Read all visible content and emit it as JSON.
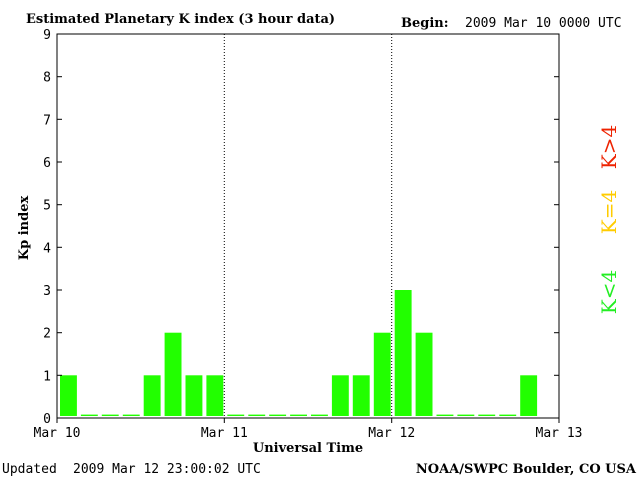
{
  "header": {
    "title": "Estimated Planetary K index (3 hour data)",
    "begin_label": "Begin:",
    "begin_value": "2009 Mar 10 0000 UTC"
  },
  "footer": {
    "updated_label": "Updated",
    "updated_value": "2009 Mar 12 23:00:02 UTC",
    "source": "NOAA/SWPC Boulder, CO USA"
  },
  "chart_data": {
    "type": "bar",
    "title": "Estimated Planetary K index (3 hour data)",
    "xlabel": "Universal Time",
    "ylabel": "Kp index",
    "ylim": [
      0,
      9
    ],
    "yticks": [
      "0",
      "1",
      "2",
      "3",
      "4",
      "5",
      "6",
      "7",
      "8",
      "9"
    ],
    "xticks": [
      "Mar 10",
      "Mar 11",
      "Mar 12",
      "Mar 13"
    ],
    "interval_hours": 3,
    "values": [
      1,
      0,
      0,
      0,
      1,
      2,
      1,
      1,
      0,
      0,
      0,
      0,
      0,
      1,
      1,
      2,
      3,
      2,
      0,
      0,
      0,
      0,
      1
    ],
    "bar_color": "#22ff00",
    "legend": [
      {
        "label": "K<4",
        "color": "#22ee22"
      },
      {
        "label": "K=4",
        "color": "#ffcc00"
      },
      {
        "label": "K>4",
        "color": "#ee2200"
      }
    ]
  }
}
